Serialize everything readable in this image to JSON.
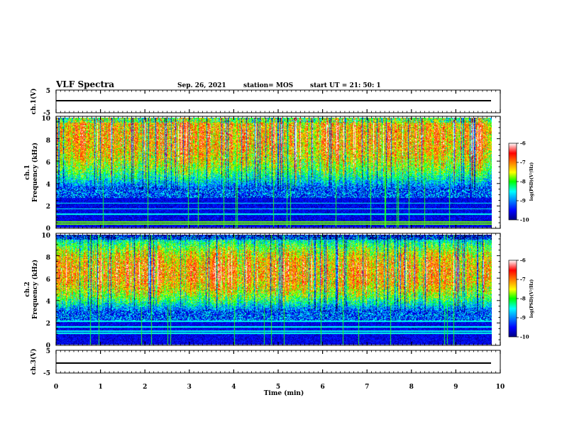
{
  "header": {
    "title": "VLF Spectra",
    "date": "Sep. 26, 2021",
    "station": "station= MOS",
    "start": "start  UT =  21: 50: 1"
  },
  "chart_data": [
    {
      "type": "line",
      "name": "ch1-voltage",
      "ylabel": "ch.1(V)",
      "ylim": [
        -5,
        5
      ],
      "yticks": [
        "5",
        "-5"
      ],
      "x": [
        0,
        10
      ],
      "values": [
        0,
        0
      ]
    },
    {
      "type": "heatmap",
      "name": "ch1-spectrogram",
      "ylabel": "ch.1\nFrequency (kHz)",
      "ylim": [
        0,
        10
      ],
      "yticks": [
        "0",
        "2",
        "4",
        "6",
        "8",
        "10"
      ],
      "xlim": [
        0,
        9.85
      ],
      "band_peak_khz": 8.3,
      "band_range_khz": [
        3.5,
        10
      ],
      "lines_khz": [
        0.3,
        0.5,
        1.2,
        1.7,
        2.2
      ],
      "colorbar": {
        "label": "log(PSD)(V²/Hz)",
        "range": [
          -10,
          -6
        ],
        "ticks": [
          "-6",
          "-7",
          "-8",
          "-9",
          "-10"
        ]
      }
    },
    {
      "type": "heatmap",
      "name": "ch2-spectrogram",
      "ylabel": "ch.2\nFrequency (kHz)",
      "ylim": [
        0,
        10
      ],
      "yticks": [
        "0",
        "2",
        "4",
        "6",
        "8",
        "10"
      ],
      "xlim": [
        0,
        9.85
      ],
      "band_peak_khz": 6.6,
      "band_range_khz": [
        3,
        10
      ],
      "lines_khz": [
        1.0,
        1.2,
        1.6,
        2.1
      ],
      "colorbar": {
        "label": "log(PSD)(V²/Hz)",
        "range": [
          -10,
          -6
        ],
        "ticks": [
          "-6",
          "-7",
          "-8",
          "-9",
          "-10"
        ]
      }
    },
    {
      "type": "line",
      "name": "ch3-voltage",
      "ylabel": "ch.3(V)",
      "ylim": [
        -5,
        5
      ],
      "yticks": [
        "5",
        "-5"
      ],
      "x": [
        0,
        10
      ],
      "values": [
        0,
        0
      ]
    }
  ],
  "xaxis": {
    "label": "Time (min)",
    "range": [
      0,
      10
    ],
    "ticks": [
      "0",
      "1",
      "2",
      "3",
      "4",
      "5",
      "6",
      "7",
      "8",
      "9",
      "10"
    ]
  }
}
